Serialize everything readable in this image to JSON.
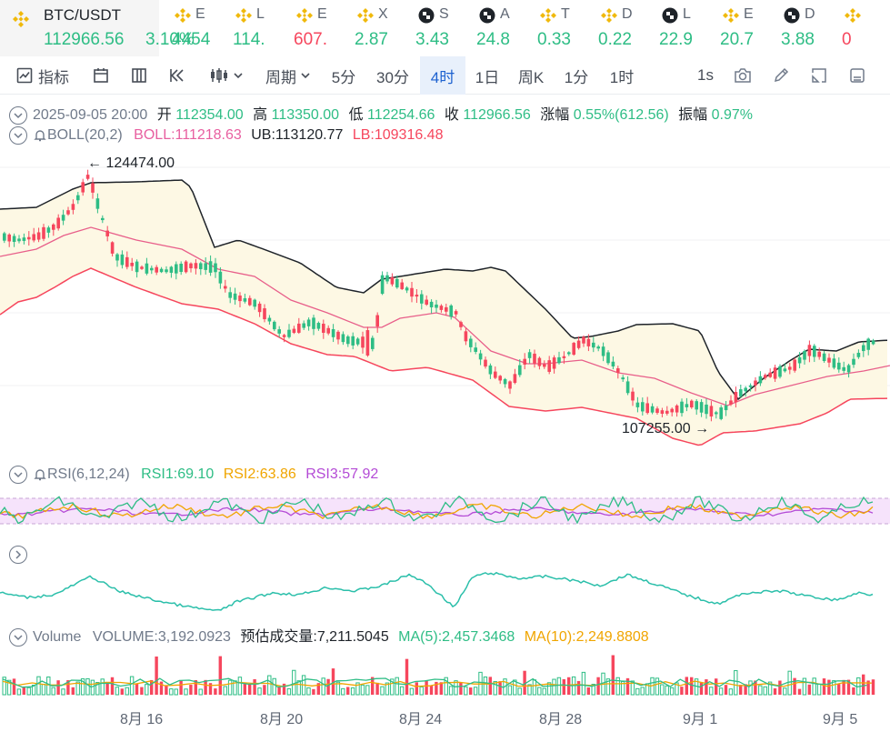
{
  "ticker": {
    "main": {
      "symbol": "BTC/USDT",
      "price": "112966.56",
      "change": "3.10%"
    },
    "items": [
      {
        "icon": "binance-coin-icon",
        "letter": "E",
        "value": "4454",
        "trend": "up"
      },
      {
        "icon": "binance-coin-icon",
        "letter": "L",
        "value": "114.",
        "trend": "up"
      },
      {
        "icon": "binance-coin-icon",
        "letter": "E",
        "value": "607.",
        "trend": "down"
      },
      {
        "icon": "binance-coin-icon",
        "letter": "X",
        "value": "2.87",
        "trend": "up"
      },
      {
        "icon": "checker-coin-icon",
        "letter": "S",
        "value": "3.43",
        "trend": "up"
      },
      {
        "icon": "checker-coin-icon",
        "letter": "A",
        "value": "24.8",
        "trend": "up"
      },
      {
        "icon": "binance-coin-icon",
        "letter": "T",
        "value": "0.33",
        "trend": "up"
      },
      {
        "icon": "binance-coin-icon",
        "letter": "D",
        "value": "0.22",
        "trend": "up"
      },
      {
        "icon": "checker-coin-icon",
        "letter": "L",
        "value": "22.9",
        "trend": "up"
      },
      {
        "icon": "binance-coin-icon",
        "letter": "E",
        "value": "20.7",
        "trend": "up"
      },
      {
        "icon": "checker-coin-icon",
        "letter": "D",
        "value": "3.88",
        "trend": "up"
      },
      {
        "icon": "binance-coin-icon",
        "letter": "",
        "value": "0",
        "trend": "down"
      }
    ]
  },
  "toolbar": {
    "indicator_label": "指标",
    "period_label": "周期",
    "intervals": [
      "5分",
      "30分",
      "4时",
      "1日",
      "周K",
      "1分",
      "1时"
    ],
    "active_interval": "4时",
    "speed_label": "1s"
  },
  "ohlc": {
    "date": "2025-09-05 20:00",
    "open_label": "开",
    "open": "112354.00",
    "high_label": "高",
    "high": "113350.00",
    "low_label": "低",
    "low": "112254.66",
    "close_label": "收",
    "close": "112966.56",
    "change_label": "涨幅",
    "change": "0.55%(612.56)",
    "amp_label": "振幅",
    "amp": "0.97%"
  },
  "boll": {
    "label": "BOLL(20,2)",
    "boll": "BOLL:111218.63",
    "ub": "UB:113120.77",
    "lb": "LB:109316.48"
  },
  "annotations": {
    "high": "← 124474.00",
    "low": "107255.00 →"
  },
  "rsi": {
    "label": "RSI(6,12,24)",
    "rsi1": "RSI1:69.10",
    "rsi2": "RSI2:63.86",
    "rsi3": "RSI3:57.92"
  },
  "volume": {
    "label": "Volume",
    "volume": "VOLUME:3,192.0923",
    "estimate": "预估成交量:7,211.5045",
    "ma5": "MA(5):2,457.3468",
    "ma10": "MA(10):2,249.8808"
  },
  "x_axis": [
    "8月 16",
    "8月 20",
    "8月 24",
    "8月 28",
    "9月 1",
    "9月 5"
  ],
  "colors": {
    "up": "#2ebd85",
    "down": "#f6465d",
    "boll_mid": "#e85f8a",
    "upper_band": "#1e2329",
    "lower_band": "#f6465d",
    "band_fill": "#fdf8e4",
    "rsi1": "#2ebd85",
    "rsi2": "#f0a500",
    "rsi3": "#b44bd6",
    "ma5": "#2ebd85",
    "ma10": "#f0a500"
  }
}
